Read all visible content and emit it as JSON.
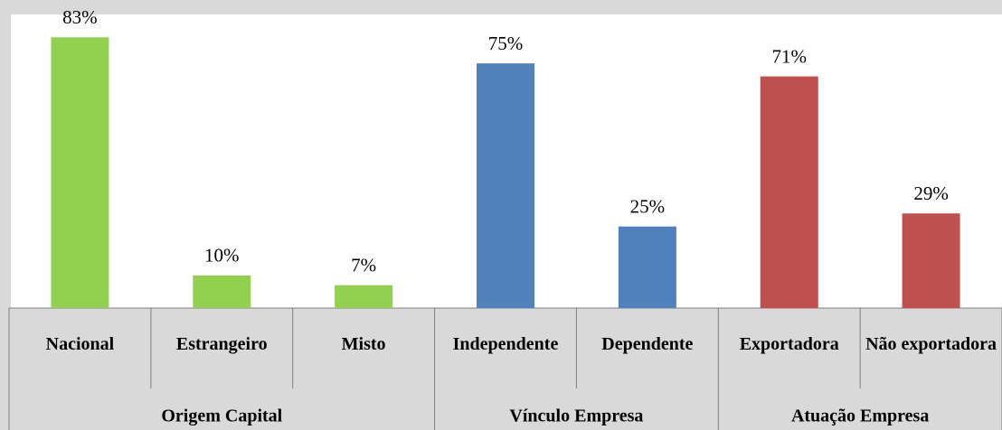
{
  "chart_data": {
    "type": "bar",
    "ylim": [
      0,
      90
    ],
    "groups": [
      {
        "name": "Origem Capital",
        "color": "#92d050",
        "categories": [
          "Nacional",
          "Estrangeiro",
          "Misto"
        ],
        "values": [
          83,
          10,
          7
        ],
        "value_labels": [
          "83%",
          "10%",
          "7%"
        ]
      },
      {
        "name": "Vínculo Empresa",
        "color": "#4f81bd",
        "categories": [
          "Independente",
          "Dependente"
        ],
        "values": [
          75,
          25
        ],
        "value_labels": [
          "75%",
          "25%"
        ]
      },
      {
        "name": "Atuação Empresa",
        "color": "#c0504d",
        "categories": [
          "Exportadora",
          "Não exportadora"
        ],
        "values": [
          71,
          29
        ],
        "value_labels": [
          "71%",
          "29%"
        ]
      }
    ]
  }
}
